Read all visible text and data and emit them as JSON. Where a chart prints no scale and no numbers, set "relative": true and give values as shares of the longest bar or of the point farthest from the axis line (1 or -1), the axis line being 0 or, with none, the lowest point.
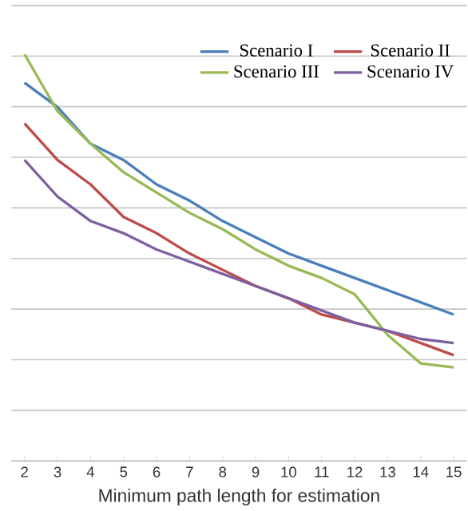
{
  "chart_data": {
    "type": "line",
    "relative": true,
    "xlabel": "Minimum path length for estimation",
    "categories": [
      "2",
      "3",
      "4",
      "5",
      "6",
      "7",
      "8",
      "9",
      "10",
      "11",
      "12",
      "13",
      "14",
      "15"
    ],
    "series": [
      {
        "name": "Scenario I",
        "color": "#4a7ebb",
        "values": [
          0.93,
          0.87,
          0.78,
          0.74,
          0.68,
          0.64,
          0.59,
          0.55,
          0.51,
          0.48,
          0.45,
          0.42,
          0.39,
          0.36
        ]
      },
      {
        "name": "Scenario II",
        "color": "#be4b48",
        "values": [
          0.83,
          0.74,
          0.68,
          0.6,
          0.56,
          0.51,
          0.47,
          0.43,
          0.4,
          0.36,
          0.34,
          0.32,
          0.29,
          0.26
        ]
      },
      {
        "name": "Scenario III",
        "color": "#98b954",
        "values": [
          1,
          0.86,
          0.78,
          0.71,
          0.66,
          0.61,
          0.57,
          0.52,
          0.48,
          0.45,
          0.41,
          0.31,
          0.24,
          0.23
        ]
      },
      {
        "name": "Scenario IV",
        "color": "#7d60a0",
        "values": [
          0.74,
          0.65,
          0.59,
          0.56,
          0.52,
          0.49,
          0.46,
          0.43,
          0.4,
          0.37,
          0.34,
          0.32,
          0.3,
          0.29
        ]
      }
    ],
    "grid": "y",
    "legend": "top right",
    "marker": "none",
    "line_style": "solid"
  }
}
